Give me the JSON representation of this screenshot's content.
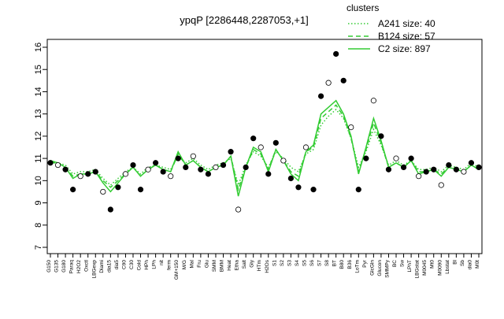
{
  "chart_data": {
    "type": "line",
    "title": "ypqP [2286448,2287053,+1]",
    "legend_title": "clusters",
    "legend": "top-right",
    "categories": [
      "G150",
      "G135",
      "G180",
      "Paraq",
      "H2O2",
      "Oxctl",
      "LBGexp",
      "Diami",
      "dia15",
      "dia5",
      "C90",
      "C30",
      "Cold",
      "HPh",
      "LPh",
      "nit",
      "ferm",
      "GM+150",
      "M/G",
      "Mal",
      "Fru",
      "Glu",
      "SMM",
      "BMM",
      "Heat",
      "Etha",
      "Salt",
      "Gly",
      "HTm",
      "H2Os",
      "S1",
      "S2",
      "S3",
      "S4",
      "S5",
      "S6",
      "S7",
      "S8",
      "BT",
      "B80",
      "B36",
      "LoTm",
      "Pyr",
      "GlcGln",
      "Glucon",
      "SMMPy",
      "BC",
      "Sw",
      "LPhT",
      "LBGstat",
      "M0045",
      "Mt0",
      "M0090",
      "Lbstat",
      "Bl",
      "Sb",
      "dia0",
      "M0t"
    ],
    "points": {
      "color": "#000000",
      "values": [
        10.8,
        10.7,
        10.5,
        9.6,
        10.2,
        10.3,
        10.4,
        9.5,
        8.7,
        9.7,
        10.3,
        10.7,
        9.6,
        10.5,
        10.8,
        10.4,
        10.2,
        11.0,
        10.6,
        11.1,
        10.5,
        10.3,
        10.6,
        10.7,
        11.3,
        8.7,
        10.6,
        11.9,
        11.5,
        10.3,
        11.7,
        10.9,
        10.1,
        9.7,
        11.5,
        9.6,
        13.8,
        14.4,
        15.7,
        14.5,
        12.4,
        9.6,
        11.0,
        13.6,
        12.0,
        10.5,
        11.0,
        10.6,
        11.0,
        10.2,
        10.4,
        10.5,
        9.8,
        10.7,
        10.5,
        10.4,
        10.8,
        10.6
      ]
    },
    "series": [
      {
        "name": "A241 size: 40",
        "color": "#33cc33",
        "dash": "dotted",
        "values": [
          10.9,
          10.8,
          10.7,
          10.3,
          10.4,
          10.4,
          10.5,
          10.1,
          9.8,
          10.1,
          10.4,
          10.6,
          10.3,
          10.6,
          10.7,
          10.6,
          10.5,
          11.1,
          10.8,
          11.0,
          10.7,
          10.5,
          10.7,
          10.8,
          11.0,
          9.8,
          10.7,
          11.3,
          11.1,
          10.6,
          11.3,
          11.0,
          10.6,
          10.4,
          11.2,
          11.4,
          12.5,
          12.9,
          13.2,
          12.8,
          11.9,
          10.6,
          11.3,
          12.3,
          11.6,
          10.7,
          10.9,
          10.7,
          10.9,
          10.5,
          10.5,
          10.6,
          10.4,
          10.7,
          10.6,
          10.5,
          10.8,
          10.6
        ]
      },
      {
        "name": "B124 size: 57",
        "color": "#33cc33",
        "dash": "dashed",
        "values": [
          10.8,
          10.8,
          10.6,
          10.2,
          10.3,
          10.3,
          10.4,
          10.0,
          9.7,
          10.0,
          10.3,
          10.6,
          10.2,
          10.5,
          10.7,
          10.5,
          10.4,
          11.2,
          10.7,
          10.9,
          10.6,
          10.4,
          10.6,
          10.7,
          11.1,
          9.6,
          10.6,
          11.4,
          11.2,
          10.5,
          11.4,
          10.9,
          10.4,
          10.2,
          11.3,
          11.5,
          12.8,
          13.1,
          13.4,
          12.9,
          11.9,
          10.4,
          11.4,
          12.6,
          11.7,
          10.6,
          10.8,
          10.6,
          10.9,
          10.4,
          10.4,
          10.5,
          10.3,
          10.6,
          10.5,
          10.4,
          10.7,
          10.5
        ]
      },
      {
        "name": "C2 size: 897",
        "color": "#33cc33",
        "dash": "solid",
        "values": [
          10.9,
          10.8,
          10.6,
          10.1,
          10.3,
          10.3,
          10.4,
          9.9,
          9.5,
          9.9,
          10.3,
          10.6,
          10.2,
          10.5,
          10.7,
          10.5,
          10.4,
          11.3,
          10.7,
          10.9,
          10.6,
          10.4,
          10.6,
          10.7,
          11.1,
          9.3,
          10.6,
          11.5,
          11.3,
          10.4,
          11.4,
          10.9,
          10.3,
          10.0,
          11.3,
          11.6,
          13.0,
          13.3,
          13.6,
          13.0,
          12.0,
          10.3,
          11.5,
          12.8,
          11.8,
          10.6,
          10.8,
          10.6,
          10.9,
          10.3,
          10.4,
          10.5,
          10.2,
          10.6,
          10.5,
          10.4,
          10.7,
          10.5
        ]
      }
    ],
    "ylim": [
      7,
      16
    ],
    "yticks": [
      7,
      8,
      9,
      10,
      11,
      12,
      13,
      14,
      15,
      16
    ]
  }
}
